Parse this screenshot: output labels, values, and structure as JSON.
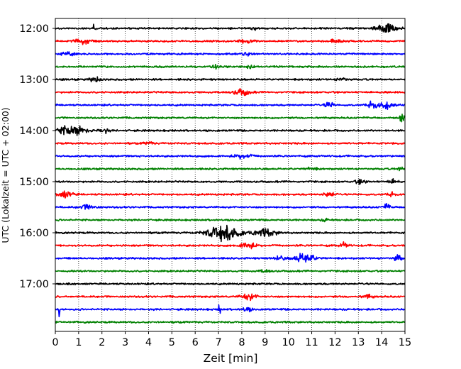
{
  "chart_data": {
    "type": "line",
    "subtype": "helicorder",
    "xlabel": "Zeit  [min]",
    "ylabel": "UTC (Lokalzeit = UTC + 02:00)",
    "xlim": [
      0,
      15
    ],
    "x_ticks": [
      "0",
      "1",
      "2",
      "3",
      "4",
      "5",
      "6",
      "7",
      "8",
      "9",
      "10",
      "11",
      "12",
      "13",
      "14",
      "15"
    ],
    "y_ticks": [
      "12:00",
      "13:00",
      "14:00",
      "15:00",
      "16:00",
      "17:00"
    ],
    "grid_x": "dotted",
    "grid_y": "none",
    "trace_minutes": 15,
    "trace_count": 24,
    "trace_colors": [
      "#000000",
      "#ff0000",
      "#0000ff",
      "#008000"
    ],
    "start_time": "12:00",
    "events": [
      {
        "trace": 0,
        "t": 1.65,
        "amp": 2.0,
        "dur": 0.15
      },
      {
        "trace": 0,
        "t": 8.5,
        "amp": 1.2,
        "dur": 0.3
      },
      {
        "trace": 0,
        "t": 14.2,
        "amp": 2.5,
        "dur": 1.0
      },
      {
        "trace": 1,
        "t": 1.2,
        "amp": 1.4,
        "dur": 0.8
      },
      {
        "trace": 1,
        "t": 8.2,
        "amp": 0.9,
        "dur": 0.6
      },
      {
        "trace": 1,
        "t": 12.0,
        "amp": 0.8,
        "dur": 0.5
      },
      {
        "trace": 2,
        "t": 0.5,
        "amp": 1.2,
        "dur": 0.6
      },
      {
        "trace": 2,
        "t": 8.2,
        "amp": 0.8,
        "dur": 0.6
      },
      {
        "trace": 3,
        "t": 6.8,
        "amp": 0.9,
        "dur": 0.5
      },
      {
        "trace": 3,
        "t": 8.3,
        "amp": 0.9,
        "dur": 0.4
      },
      {
        "trace": 4,
        "t": 1.7,
        "amp": 1.2,
        "dur": 0.5
      },
      {
        "trace": 4,
        "t": 12.3,
        "amp": 0.8,
        "dur": 0.5
      },
      {
        "trace": 5,
        "t": 8.0,
        "amp": 1.6,
        "dur": 0.8
      },
      {
        "trace": 6,
        "t": 11.75,
        "amp": 2.0,
        "dur": 0.4
      },
      {
        "trace": 6,
        "t": 13.6,
        "amp": 1.6,
        "dur": 0.6
      },
      {
        "trace": 6,
        "t": 14.2,
        "amp": 1.8,
        "dur": 0.6
      },
      {
        "trace": 7,
        "t": 14.9,
        "amp": 2.6,
        "dur": 0.3
      },
      {
        "trace": 8,
        "t": 0.7,
        "amp": 2.4,
        "dur": 1.6
      },
      {
        "trace": 8,
        "t": 2.1,
        "amp": 1.5,
        "dur": 0.4
      },
      {
        "trace": 9,
        "t": 4.0,
        "amp": 0.6,
        "dur": 0.5
      },
      {
        "trace": 10,
        "t": 8.0,
        "amp": 1.1,
        "dur": 1.0
      },
      {
        "trace": 11,
        "t": 11.0,
        "amp": 0.8,
        "dur": 0.5
      },
      {
        "trace": 11,
        "t": 14.8,
        "amp": 1.0,
        "dur": 0.3
      },
      {
        "trace": 12,
        "t": 13.1,
        "amp": 1.2,
        "dur": 0.5
      },
      {
        "trace": 12,
        "t": 14.5,
        "amp": 1.0,
        "dur": 0.5
      },
      {
        "trace": 13,
        "t": 0.4,
        "amp": 1.6,
        "dur": 0.9
      },
      {
        "trace": 13,
        "t": 11.75,
        "amp": 1.4,
        "dur": 0.5
      },
      {
        "trace": 13,
        "t": 14.4,
        "amp": 1.0,
        "dur": 0.4
      },
      {
        "trace": 14,
        "t": 1.4,
        "amp": 1.2,
        "dur": 0.8
      },
      {
        "trace": 14,
        "t": 14.2,
        "amp": 1.4,
        "dur": 0.4
      },
      {
        "trace": 15,
        "t": 11.6,
        "amp": 0.6,
        "dur": 0.4
      },
      {
        "trace": 16,
        "t": 7.2,
        "amp": 4.0,
        "dur": 1.6
      },
      {
        "trace": 16,
        "t": 9.0,
        "amp": 1.7,
        "dur": 1.2
      },
      {
        "trace": 17,
        "t": 8.3,
        "amp": 1.8,
        "dur": 0.8
      },
      {
        "trace": 17,
        "t": 12.4,
        "amp": 1.4,
        "dur": 0.4
      },
      {
        "trace": 18,
        "t": 10.7,
        "amp": 2.6,
        "dur": 1.0
      },
      {
        "trace": 18,
        "t": 9.6,
        "amp": 1.0,
        "dur": 0.6
      },
      {
        "trace": 18,
        "t": 14.7,
        "amp": 1.8,
        "dur": 0.4
      },
      {
        "trace": 19,
        "t": 9.0,
        "amp": 0.5,
        "dur": 0.6
      },
      {
        "trace": 21,
        "t": 8.3,
        "amp": 1.5,
        "dur": 0.8
      },
      {
        "trace": 21,
        "t": 13.4,
        "amp": 1.0,
        "dur": 0.5
      },
      {
        "trace": 22,
        "t": 0.15,
        "amp": 3.5,
        "dur": 0.1
      },
      {
        "trace": 22,
        "t": 7.05,
        "amp": 4.5,
        "dur": 0.1
      },
      {
        "trace": 22,
        "t": 8.2,
        "amp": 1.1,
        "dur": 0.5
      }
    ]
  }
}
